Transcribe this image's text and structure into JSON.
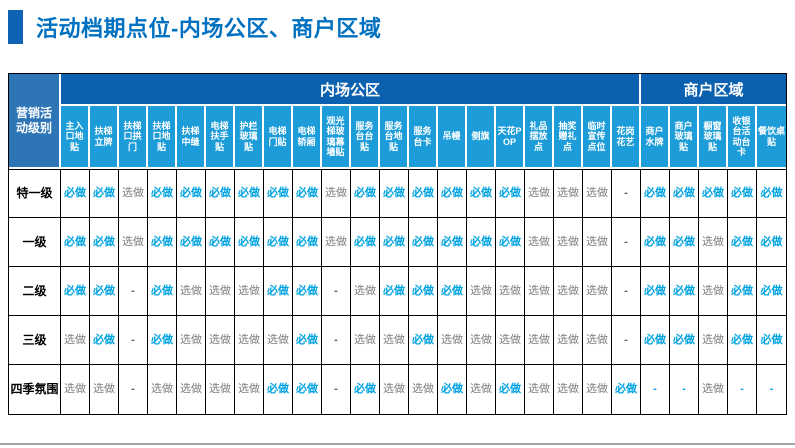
{
  "title": "活动档期点位-内场公区、商户区域",
  "colors": {
    "title_text": "#0070C0",
    "accent_bar": "#1062B4",
    "group_header_bg": "#0B61B0",
    "column_header_bg": "#1C9CD8",
    "corner_header_bg": "#2E75B6",
    "must_do_text": "#00A3E0",
    "optional_text": "#7F7F7F",
    "dash_text": "#595959",
    "bottom_divider": "#A6A6A6"
  },
  "table": {
    "corner_label": "营销活动级别",
    "groups": [
      {
        "label": "内场公区",
        "span": 20
      },
      {
        "label": "商户区域",
        "span": 5
      }
    ],
    "columns": [
      "主入口地贴",
      "扶梯立牌",
      "扶梯口拱门",
      "扶梯口地贴",
      "扶梯中缝",
      "电梯扶手贴",
      "护栏玻璃贴",
      "电梯门贴",
      "电梯轿厢",
      "观光梯玻璃幕墙贴",
      "服务台台贴",
      "服务台地贴",
      "服务台卡",
      "吊幔",
      "侧旗",
      "天花POP",
      "礼品摆放点",
      "抽奖赠礼点",
      "临时宣传点位",
      "花岗花艺",
      "商户水牌",
      "商户玻璃贴",
      "橱窗玻璃贴",
      "收银台活动台卡",
      "餐饮桌贴"
    ],
    "value_labels": {
      "must": "必做",
      "optional": "选做",
      "none": "-"
    },
    "rows": [
      {
        "label": "特一级",
        "cells": [
          "必做",
          "必做",
          "选做",
          "必做",
          "必做",
          "必做",
          "必做",
          "必做",
          "必做",
          "选做",
          "必做",
          "必做",
          "必做",
          "必做",
          "必做",
          "必做",
          "选做",
          "选做",
          "选做",
          "-",
          "必做",
          "必做",
          "必做",
          "必做",
          "必做"
        ]
      },
      {
        "label": "一级",
        "cells": [
          "必做",
          "必做",
          "选做",
          "必做",
          "必做",
          "必做",
          "必做",
          "必做",
          "必做",
          "选做",
          "必做",
          "必做",
          "必做",
          "必做",
          "必做",
          "必做",
          "选做",
          "选做",
          "选做",
          "-",
          "必做",
          "必做",
          "选做",
          "必做",
          "必做"
        ]
      },
      {
        "label": "二级",
        "cells": [
          "必做",
          "必做",
          "-",
          "必做",
          "选做",
          "选做",
          "选做",
          "必做",
          "必做",
          "-",
          "选做",
          "必做",
          "必做",
          "必做",
          "选做",
          "选做",
          "选做",
          "选做",
          "选做",
          "-",
          "必做",
          "必做",
          "选做",
          "必做",
          "必做"
        ]
      },
      {
        "label": "三级",
        "cells": [
          "选做",
          "必做",
          "-",
          "必做",
          "选做",
          "选做",
          "选做",
          "选做",
          "必做",
          "-",
          "选做",
          "选做",
          "必做",
          "选做",
          "选做",
          "选做",
          "选做",
          "选做",
          "选做",
          "-",
          "必做",
          "必做",
          "选做",
          "必做",
          "必做"
        ]
      },
      {
        "label": "四季氛围",
        "cells": [
          "选做",
          "选做",
          "-",
          "选做",
          "选做",
          "选做",
          "选做",
          "必做",
          "必做",
          "-",
          "必做",
          "选做",
          "选做",
          "必做",
          "选做",
          "必做",
          "选做",
          "选做",
          "选做",
          "必做",
          "-",
          "-",
          "选做",
          "-",
          "-"
        ]
      }
    ],
    "blue_dash_cells": [
      [
        4,
        20
      ],
      [
        4,
        21
      ],
      [
        4,
        23
      ],
      [
        4,
        24
      ]
    ]
  }
}
